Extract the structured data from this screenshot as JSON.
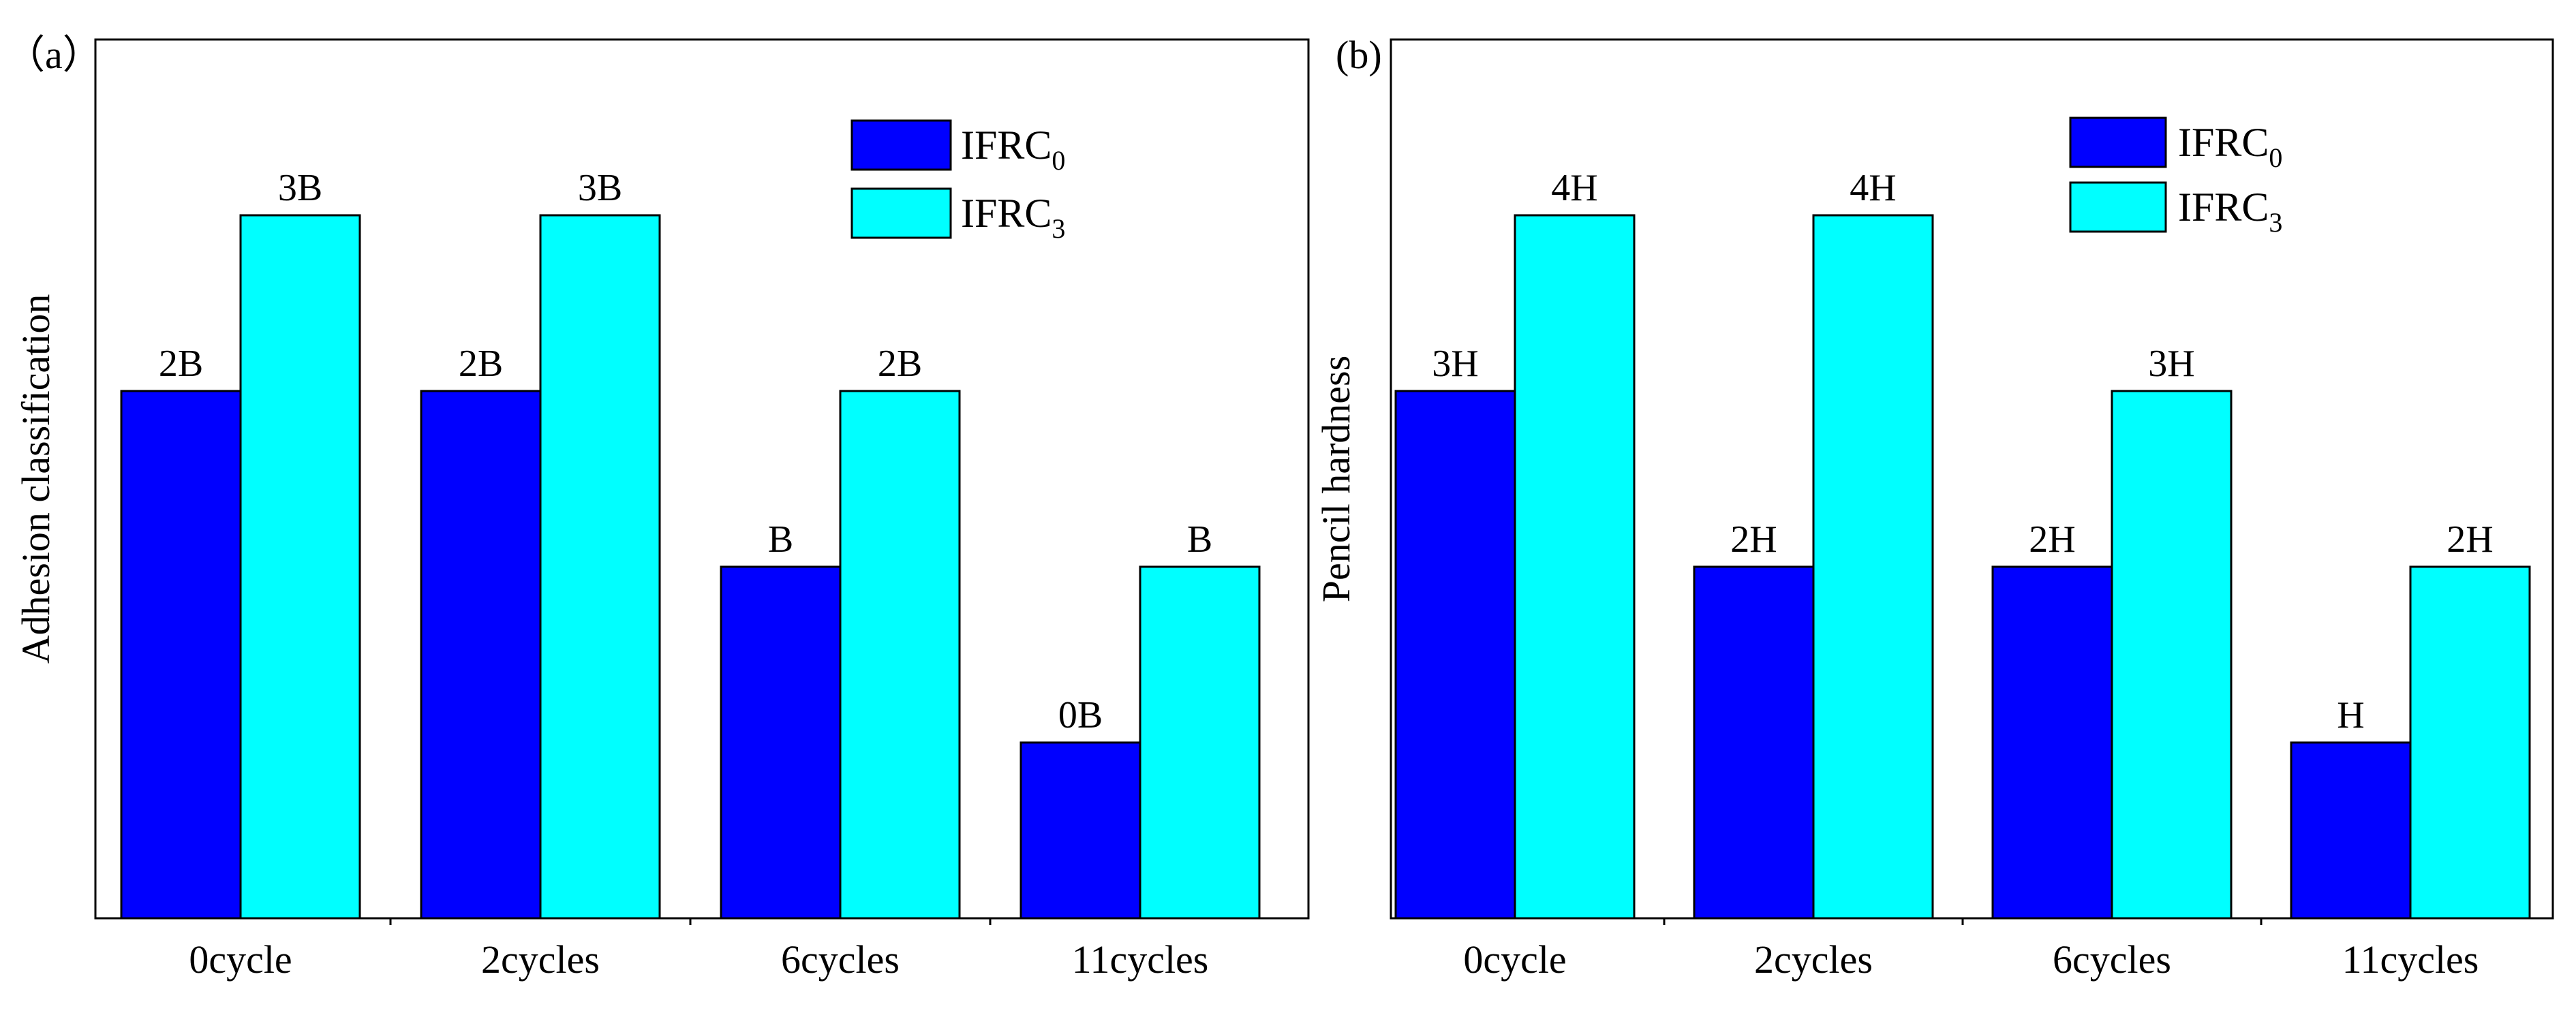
{
  "chart_data": [
    {
      "type": "bar",
      "panel_label": "（a）",
      "ylabel": "Adhesion classification",
      "xlabel": "",
      "categories": [
        "0cycle",
        "2cycles",
        "6cycles",
        "11cycles"
      ],
      "ylim": [
        -1,
        4
      ],
      "series": [
        {
          "name": "IFRC",
          "subscript": "0",
          "color": "#0000FF",
          "values": [
            2,
            2,
            1,
            0
          ],
          "labels": [
            "2B",
            "2B",
            "B",
            "0B"
          ]
        },
        {
          "name": "IFRC",
          "subscript": "3",
          "color": "#00FFFF",
          "values": [
            3,
            3,
            2,
            1
          ],
          "labels": [
            "3B",
            "3B",
            "2B",
            "B"
          ]
        }
      ],
      "legend_position": "top-right",
      "grid": false
    },
    {
      "type": "bar",
      "panel_label": "(b)",
      "ylabel": "Pencil hardness",
      "xlabel": "",
      "categories": [
        "0cycle",
        "2cycles",
        "6cycles",
        "11cycles"
      ],
      "ylim": [
        0,
        5
      ],
      "series": [
        {
          "name": "IFRC",
          "subscript": "0",
          "color": "#0000FF",
          "values": [
            3,
            2,
            2,
            1
          ],
          "labels": [
            "3H",
            "2H",
            "2H",
            "H"
          ]
        },
        {
          "name": "IFRC",
          "subscript": "3",
          "color": "#00FFFF",
          "values": [
            4,
            4,
            3,
            2
          ],
          "labels": [
            "4H",
            "4H",
            "3H",
            "2H"
          ]
        }
      ],
      "legend_position": "top-center",
      "grid": false
    }
  ]
}
